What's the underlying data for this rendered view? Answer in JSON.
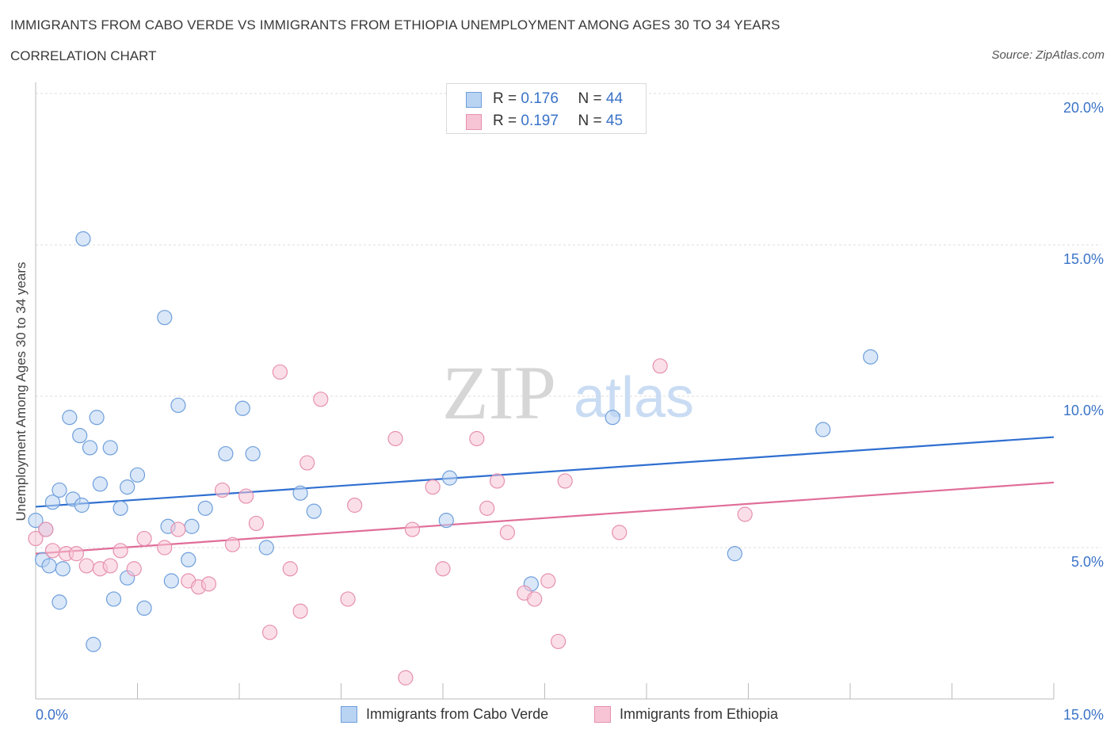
{
  "header": {
    "title": "IMMIGRANTS FROM CABO VERDE VS IMMIGRANTS FROM ETHIOPIA UNEMPLOYMENT AMONG AGES 30 TO 34 YEARS",
    "subtitle": "CORRELATION CHART",
    "source": "Source: ZipAtlas.com"
  },
  "legend": {
    "r_label": "R =",
    "n_label": "N =",
    "rows": [
      {
        "r": "0.176",
        "n": "44"
      },
      {
        "r": "0.197",
        "n": "45"
      }
    ]
  },
  "watermark": {
    "zip": "ZIP",
    "atlas": "atlas"
  },
  "colors": {
    "blue": "#3a73c8",
    "blue_fill": "#b9d3f3",
    "blue_line": "#2f6fd0",
    "pink": "#e27aa0",
    "pink_fill": "#f7c4d5",
    "pink_line": "#e06d98",
    "grid": "#dddddd",
    "axis_text": "#3a73c8"
  },
  "chart_data": {
    "type": "scatter",
    "title": "IMMIGRANTS FROM CABO VERDE VS IMMIGRANTS FROM ETHIOPIA UNEMPLOYMENT AMONG AGES 30 TO 34 YEARS",
    "ylabel": "Unemployment Among Ages 30 to 34 years",
    "xlabel": "",
    "xlim": [
      0,
      15
    ],
    "ylim": [
      0,
      20
    ],
    "x_tick_labels": [
      "0.0%",
      "15.0%"
    ],
    "y_ticks": [
      5,
      10,
      15,
      20
    ],
    "y_tick_labels": [
      "5.0%",
      "10.0%",
      "15.0%",
      "20.0%"
    ],
    "grid": true,
    "series": [
      {
        "name": "Immigrants from Cabo Verde",
        "color": "blue",
        "r": 0.176,
        "n": 44,
        "trend": [
          [
            0,
            6.35
          ],
          [
            15,
            8.65
          ]
        ],
        "points": [
          [
            0.0,
            5.9
          ],
          [
            0.1,
            4.6
          ],
          [
            0.15,
            5.6
          ],
          [
            0.2,
            4.4
          ],
          [
            0.25,
            6.5
          ],
          [
            0.35,
            6.9
          ],
          [
            0.4,
            4.3
          ],
          [
            0.35,
            3.2
          ],
          [
            0.5,
            9.3
          ],
          [
            0.55,
            6.6
          ],
          [
            0.65,
            8.7
          ],
          [
            0.68,
            6.4
          ],
          [
            0.7,
            15.2
          ],
          [
            0.8,
            8.3
          ],
          [
            0.85,
            1.8
          ],
          [
            0.9,
            9.3
          ],
          [
            0.95,
            7.1
          ],
          [
            1.1,
            8.3
          ],
          [
            1.15,
            3.3
          ],
          [
            1.25,
            6.3
          ],
          [
            1.35,
            4.0
          ],
          [
            1.35,
            7.0
          ],
          [
            1.5,
            7.4
          ],
          [
            1.6,
            3.0
          ],
          [
            1.9,
            12.6
          ],
          [
            1.95,
            5.7
          ],
          [
            2.0,
            3.9
          ],
          [
            2.1,
            9.7
          ],
          [
            2.25,
            4.6
          ],
          [
            2.3,
            5.7
          ],
          [
            2.5,
            6.3
          ],
          [
            2.8,
            8.1
          ],
          [
            3.05,
            9.6
          ],
          [
            3.2,
            8.1
          ],
          [
            3.4,
            5.0
          ],
          [
            3.9,
            6.8
          ],
          [
            4.1,
            6.2
          ],
          [
            6.05,
            5.9
          ],
          [
            6.1,
            7.3
          ],
          [
            7.3,
            3.8
          ],
          [
            8.5,
            9.3
          ],
          [
            10.3,
            4.8
          ],
          [
            11.6,
            8.9
          ],
          [
            12.3,
            11.3
          ]
        ]
      },
      {
        "name": "Immigrants from Ethiopia",
        "color": "pink",
        "r": 0.197,
        "n": 45,
        "trend": [
          [
            0,
            4.8
          ],
          [
            15,
            7.15
          ]
        ],
        "points": [
          [
            0.0,
            5.3
          ],
          [
            0.15,
            5.6
          ],
          [
            0.25,
            4.9
          ],
          [
            0.45,
            4.8
          ],
          [
            0.6,
            4.8
          ],
          [
            0.75,
            4.4
          ],
          [
            0.95,
            4.3
          ],
          [
            1.1,
            4.4
          ],
          [
            1.25,
            4.9
          ],
          [
            1.45,
            4.3
          ],
          [
            1.6,
            5.3
          ],
          [
            1.9,
            5.0
          ],
          [
            2.1,
            5.6
          ],
          [
            2.25,
            3.9
          ],
          [
            2.4,
            3.7
          ],
          [
            2.55,
            3.8
          ],
          [
            2.75,
            6.9
          ],
          [
            2.9,
            5.1
          ],
          [
            3.1,
            6.7
          ],
          [
            3.25,
            5.8
          ],
          [
            3.45,
            2.2
          ],
          [
            3.6,
            10.8
          ],
          [
            3.75,
            4.3
          ],
          [
            3.9,
            2.9
          ],
          [
            4.0,
            7.8
          ],
          [
            4.2,
            9.9
          ],
          [
            4.6,
            3.3
          ],
          [
            4.7,
            6.4
          ],
          [
            5.3,
            8.6
          ],
          [
            5.45,
            0.7
          ],
          [
            5.55,
            5.6
          ],
          [
            5.85,
            7.0
          ],
          [
            6.0,
            4.3
          ],
          [
            6.5,
            8.6
          ],
          [
            6.65,
            6.3
          ],
          [
            6.8,
            7.2
          ],
          [
            6.95,
            5.5
          ],
          [
            7.2,
            3.5
          ],
          [
            7.35,
            3.3
          ],
          [
            7.55,
            3.9
          ],
          [
            7.7,
            1.9
          ],
          [
            7.8,
            7.2
          ],
          [
            8.6,
            5.5
          ],
          [
            9.2,
            11.0
          ],
          [
            10.45,
            6.1
          ]
        ]
      }
    ]
  }
}
